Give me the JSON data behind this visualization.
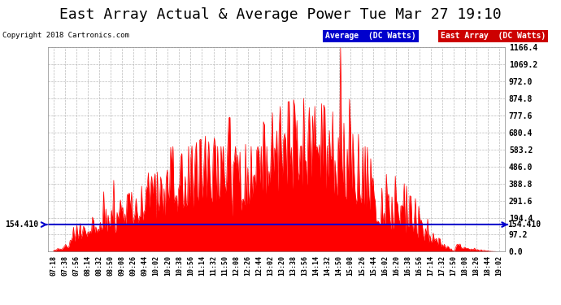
{
  "title": "East Array Actual & Average Power Tue Mar 27 19:10",
  "copyright": "Copyright 2018 Cartronics.com",
  "legend_labels": [
    "Average  (DC Watts)",
    "East Array  (DC Watts)"
  ],
  "legend_colors": [
    "#0000cc",
    "#cc0000"
  ],
  "avg_value": 154.41,
  "y_ticks": [
    0.0,
    97.2,
    194.4,
    291.6,
    388.8,
    486.0,
    583.2,
    680.4,
    777.6,
    874.8,
    972.0,
    1069.2,
    1166.4
  ],
  "y_max": 1166.4,
  "y_min": 0.0,
  "background_color": "#ffffff",
  "plot_bg_color": "#ffffff",
  "grid_color": "#aaaaaa",
  "avg_line_color": "#0000cc",
  "fill_color": "#ff0000",
  "x_labels": [
    "07:18",
    "07:38",
    "07:56",
    "08:14",
    "08:32",
    "08:50",
    "09:08",
    "09:26",
    "09:44",
    "10:02",
    "10:20",
    "10:38",
    "10:56",
    "11:14",
    "11:32",
    "11:50",
    "12:08",
    "12:26",
    "12:44",
    "13:02",
    "13:20",
    "13:38",
    "13:56",
    "14:14",
    "14:32",
    "14:50",
    "15:08",
    "15:26",
    "15:44",
    "16:02",
    "16:20",
    "16:38",
    "16:56",
    "17:14",
    "17:32",
    "17:50",
    "18:08",
    "18:26",
    "18:44",
    "19:02"
  ],
  "title_fontsize": 13,
  "tick_fontsize": 6.5,
  "label_color": "#000000",
  "avg_label_color": "#000000"
}
